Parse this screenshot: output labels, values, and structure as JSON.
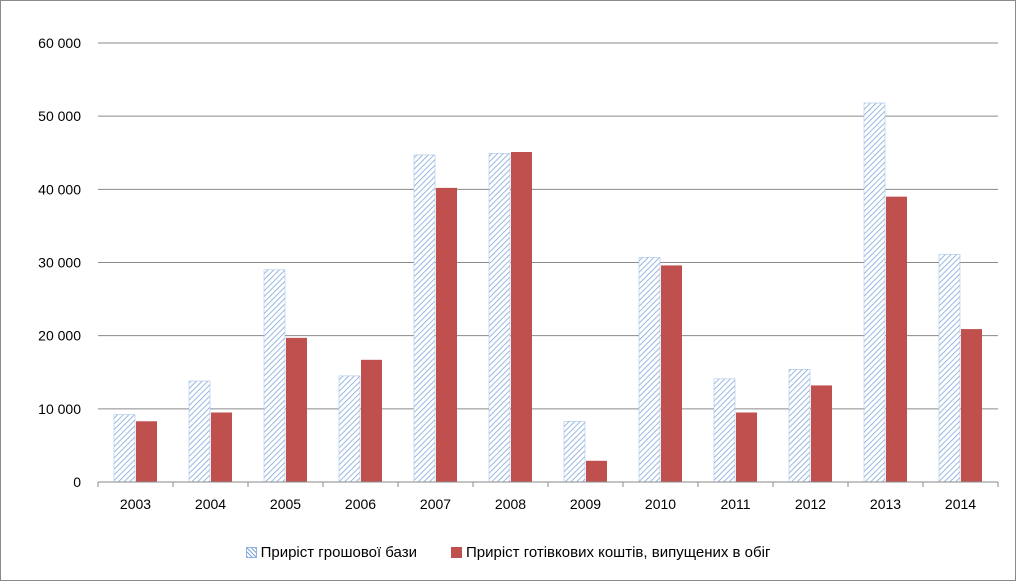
{
  "chart_data": {
    "type": "bar",
    "title": "",
    "xlabel": "",
    "ylabel": "",
    "categories": [
      "2003",
      "2004",
      "2005",
      "2006",
      "2007",
      "2008",
      "2009",
      "2010",
      "2011",
      "2012",
      "2013",
      "2014"
    ],
    "series": [
      {
        "name": "Приріст грошової бази",
        "fill": "hatched",
        "color": "#7fa6da",
        "values": [
          9200,
          13800,
          29000,
          14500,
          44700,
          44900,
          8300,
          30700,
          14100,
          15400,
          51800,
          31100
        ]
      },
      {
        "name": "Приріст готівкових коштів, випущених в обіг",
        "fill": "solid",
        "color": "#c0504d",
        "values": [
          8300,
          9500,
          19700,
          16700,
          40200,
          45100,
          2900,
          29600,
          9500,
          13200,
          39000,
          20900
        ]
      }
    ],
    "ylim": [
      0,
      60000
    ],
    "yticks": [
      0,
      10000,
      20000,
      30000,
      40000,
      50000,
      60000
    ],
    "ytick_labels": [
      "0",
      "10 000",
      "20 000",
      "30 000",
      "40 000",
      "50 000",
      "60 000"
    ],
    "grid": true,
    "legend_position": "bottom"
  }
}
